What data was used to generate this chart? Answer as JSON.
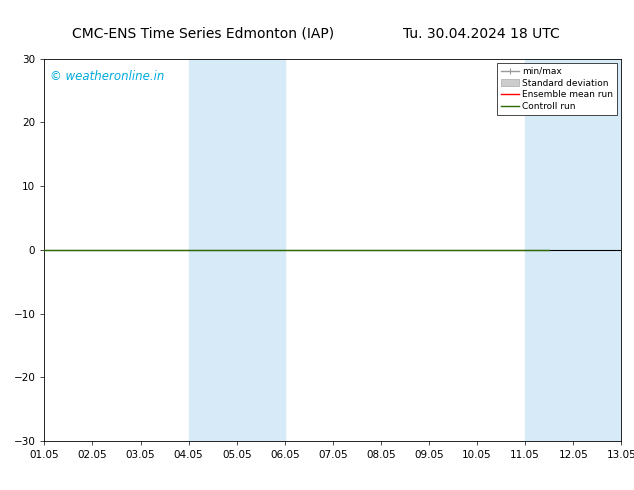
{
  "title_left": "CMC-ENS Time Series Edmonton (IAP)",
  "title_right": "Tu. 30.04.2024 18 UTC",
  "watermark": "© weatheronline.in",
  "watermark_color": "#00aadd",
  "ylim": [
    -30,
    30
  ],
  "yticks": [
    -30,
    -20,
    -10,
    0,
    10,
    20,
    30
  ],
  "xtick_labels": [
    "01.05",
    "02.05",
    "03.05",
    "04.05",
    "05.05",
    "06.05",
    "07.05",
    "08.05",
    "09.05",
    "10.05",
    "11.05",
    "12.05",
    "13.05"
  ],
  "xtick_positions": [
    0,
    1,
    2,
    3,
    4,
    5,
    6,
    7,
    8,
    9,
    10,
    11,
    12
  ],
  "shade_bands": [
    [
      3,
      4
    ],
    [
      4,
      5
    ],
    [
      10,
      11
    ],
    [
      11,
      12
    ]
  ],
  "shade_color": "#d6eaf8",
  "control_run_color": "#2d6a00",
  "ensemble_mean_color": "#ff0000",
  "minmax_color": "#999999",
  "stddev_color": "#cccccc",
  "background_color": "#ffffff",
  "legend_labels": [
    "min/max",
    "Standard deviation",
    "Ensemble mean run",
    "Controll run"
  ],
  "title_fontsize": 10,
  "tick_fontsize": 7.5,
  "watermark_fontsize": 8.5
}
